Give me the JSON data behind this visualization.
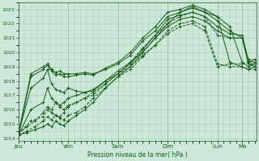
{
  "title": "",
  "xlabel": "Pression niveau de la mer( hPa )",
  "ylabel": "",
  "bg_color": "#cbe8d8",
  "plot_bg_color": "#cbe8d8",
  "grid_color": "#a8ccba",
  "line_color": "#1a5c1a",
  "ylim": [
    1013.8,
    1023.5
  ],
  "yticks": [
    1014,
    1015,
    1016,
    1017,
    1018,
    1019,
    1020,
    1021,
    1022,
    1023
  ],
  "day_labels": [
    "Jeu",
    "Ven",
    "Sam",
    "Dim",
    "Lun",
    "Ma"
  ],
  "day_positions": [
    0,
    24,
    48,
    72,
    96,
    108
  ],
  "total_hours": 115,
  "series": [
    {
      "x": [
        0,
        6,
        12,
        14,
        16,
        18,
        20,
        22,
        24,
        28,
        32,
        36,
        42,
        48,
        54,
        60,
        66,
        72,
        78,
        84,
        90,
        96,
        102,
        108,
        111,
        114
      ],
      "y": [
        1014.3,
        1018.5,
        1019.0,
        1019.2,
        1018.8,
        1018.6,
        1018.7,
        1018.5,
        1018.5,
        1018.5,
        1018.6,
        1018.5,
        1018.8,
        1019.2,
        1019.8,
        1020.8,
        1021.5,
        1022.5,
        1022.8,
        1023.1,
        1022.8,
        1022.2,
        1021.5,
        1021.0,
        1019.2,
        1019.0
      ],
      "dashed": false
    },
    {
      "x": [
        0,
        6,
        12,
        14,
        16,
        18,
        20,
        22,
        24,
        28,
        32,
        36,
        42,
        48,
        54,
        60,
        66,
        72,
        78,
        84,
        90,
        96,
        102,
        108,
        111,
        114
      ],
      "y": [
        1014.2,
        1018.3,
        1018.8,
        1019.1,
        1018.7,
        1018.4,
        1018.5,
        1018.3,
        1018.3,
        1018.4,
        1018.5,
        1018.4,
        1018.9,
        1019.3,
        1020.0,
        1021.0,
        1021.8,
        1022.8,
        1023.0,
        1023.3,
        1023.0,
        1022.5,
        1021.8,
        1019.3,
        1019.0,
        1019.2
      ],
      "dashed": false
    },
    {
      "x": [
        0,
        6,
        12,
        14,
        16,
        18,
        20,
        22,
        24,
        28,
        32,
        36,
        42,
        48,
        54,
        60,
        66,
        72,
        78,
        84,
        90,
        96,
        102,
        108,
        111,
        114
      ],
      "y": [
        1014.3,
        1017.5,
        1018.2,
        1018.8,
        1017.8,
        1017.4,
        1017.3,
        1017.2,
        1017.5,
        1017.3,
        1017.2,
        1017.3,
        1018.0,
        1018.5,
        1019.2,
        1020.2,
        1021.2,
        1022.3,
        1022.6,
        1022.8,
        1022.5,
        1021.8,
        1021.3,
        1021.2,
        1019.4,
        1019.3
      ],
      "dashed": false
    },
    {
      "x": [
        0,
        6,
        12,
        14,
        16,
        18,
        20,
        22,
        24,
        28,
        32,
        36,
        42,
        48,
        54,
        60,
        66,
        72,
        78,
        84,
        90,
        96,
        102,
        108,
        111,
        114
      ],
      "y": [
        1014.2,
        1016.0,
        1016.5,
        1017.5,
        1016.8,
        1016.5,
        1016.3,
        1016.5,
        1016.8,
        1017.0,
        1017.2,
        1017.4,
        1018.0,
        1018.7,
        1019.3,
        1020.0,
        1021.0,
        1021.8,
        1022.3,
        1022.5,
        1022.2,
        1021.5,
        1021.0,
        1021.0,
        1019.2,
        1019.2
      ],
      "dashed": false
    },
    {
      "x": [
        0,
        6,
        12,
        14,
        16,
        18,
        20,
        22,
        24,
        28,
        32,
        36,
        42,
        48,
        54,
        60,
        66,
        72,
        78,
        84,
        90,
        96,
        102,
        108,
        111,
        114
      ],
      "y": [
        1014.3,
        1015.2,
        1015.5,
        1016.0,
        1015.8,
        1015.6,
        1015.5,
        1015.8,
        1016.2,
        1016.5,
        1016.8,
        1017.0,
        1017.8,
        1018.5,
        1019.3,
        1020.3,
        1021.2,
        1022.0,
        1022.5,
        1022.8,
        1022.5,
        1021.2,
        1021.0,
        1021.0,
        1019.5,
        1019.5
      ],
      "dashed": true
    },
    {
      "x": [
        0,
        4,
        8,
        12,
        14,
        16,
        18,
        20,
        22,
        24,
        28,
        32,
        36,
        42,
        48,
        54,
        60,
        66,
        72,
        78,
        84,
        90,
        96,
        102,
        108,
        111,
        114
      ],
      "y": [
        1014.3,
        1014.8,
        1015.2,
        1015.8,
        1016.2,
        1016.0,
        1016.5,
        1016.2,
        1016.0,
        1016.3,
        1016.5,
        1016.8,
        1017.2,
        1017.8,
        1018.5,
        1019.0,
        1019.8,
        1020.5,
        1021.5,
        1022.0,
        1022.2,
        1021.8,
        1019.2,
        1019.0,
        1019.0,
        1018.8,
        1018.8
      ],
      "dashed": true
    },
    {
      "x": [
        0,
        4,
        8,
        12,
        14,
        16,
        18,
        20,
        22,
        24,
        28,
        32,
        36,
        42,
        48,
        54,
        60,
        66,
        72,
        78,
        84,
        90,
        96,
        102,
        108,
        111,
        114
      ],
      "y": [
        1014.2,
        1014.5,
        1014.8,
        1015.2,
        1015.5,
        1015.3,
        1015.6,
        1015.4,
        1015.3,
        1015.6,
        1015.8,
        1016.2,
        1016.8,
        1017.5,
        1018.3,
        1018.8,
        1019.7,
        1020.5,
        1021.3,
        1021.8,
        1022.0,
        1021.5,
        1019.0,
        1019.2,
        1019.2,
        1019.3,
        1019.5
      ],
      "dashed": true
    },
    {
      "x": [
        0,
        4,
        8,
        12,
        14,
        16,
        18,
        20,
        22,
        24,
        28,
        32,
        36,
        42,
        48,
        54,
        60,
        66,
        72,
        78,
        84,
        90,
        96,
        102,
        108,
        111,
        114
      ],
      "y": [
        1014.2,
        1014.4,
        1014.6,
        1014.8,
        1015.0,
        1014.8,
        1015.2,
        1015.0,
        1014.9,
        1015.2,
        1015.6,
        1016.0,
        1016.5,
        1017.5,
        1018.3,
        1019.0,
        1020.0,
        1021.0,
        1022.0,
        1022.8,
        1023.2,
        1022.8,
        1022.5,
        1019.3,
        1019.0,
        1018.8,
        1019.0
      ],
      "dashed": false
    }
  ]
}
